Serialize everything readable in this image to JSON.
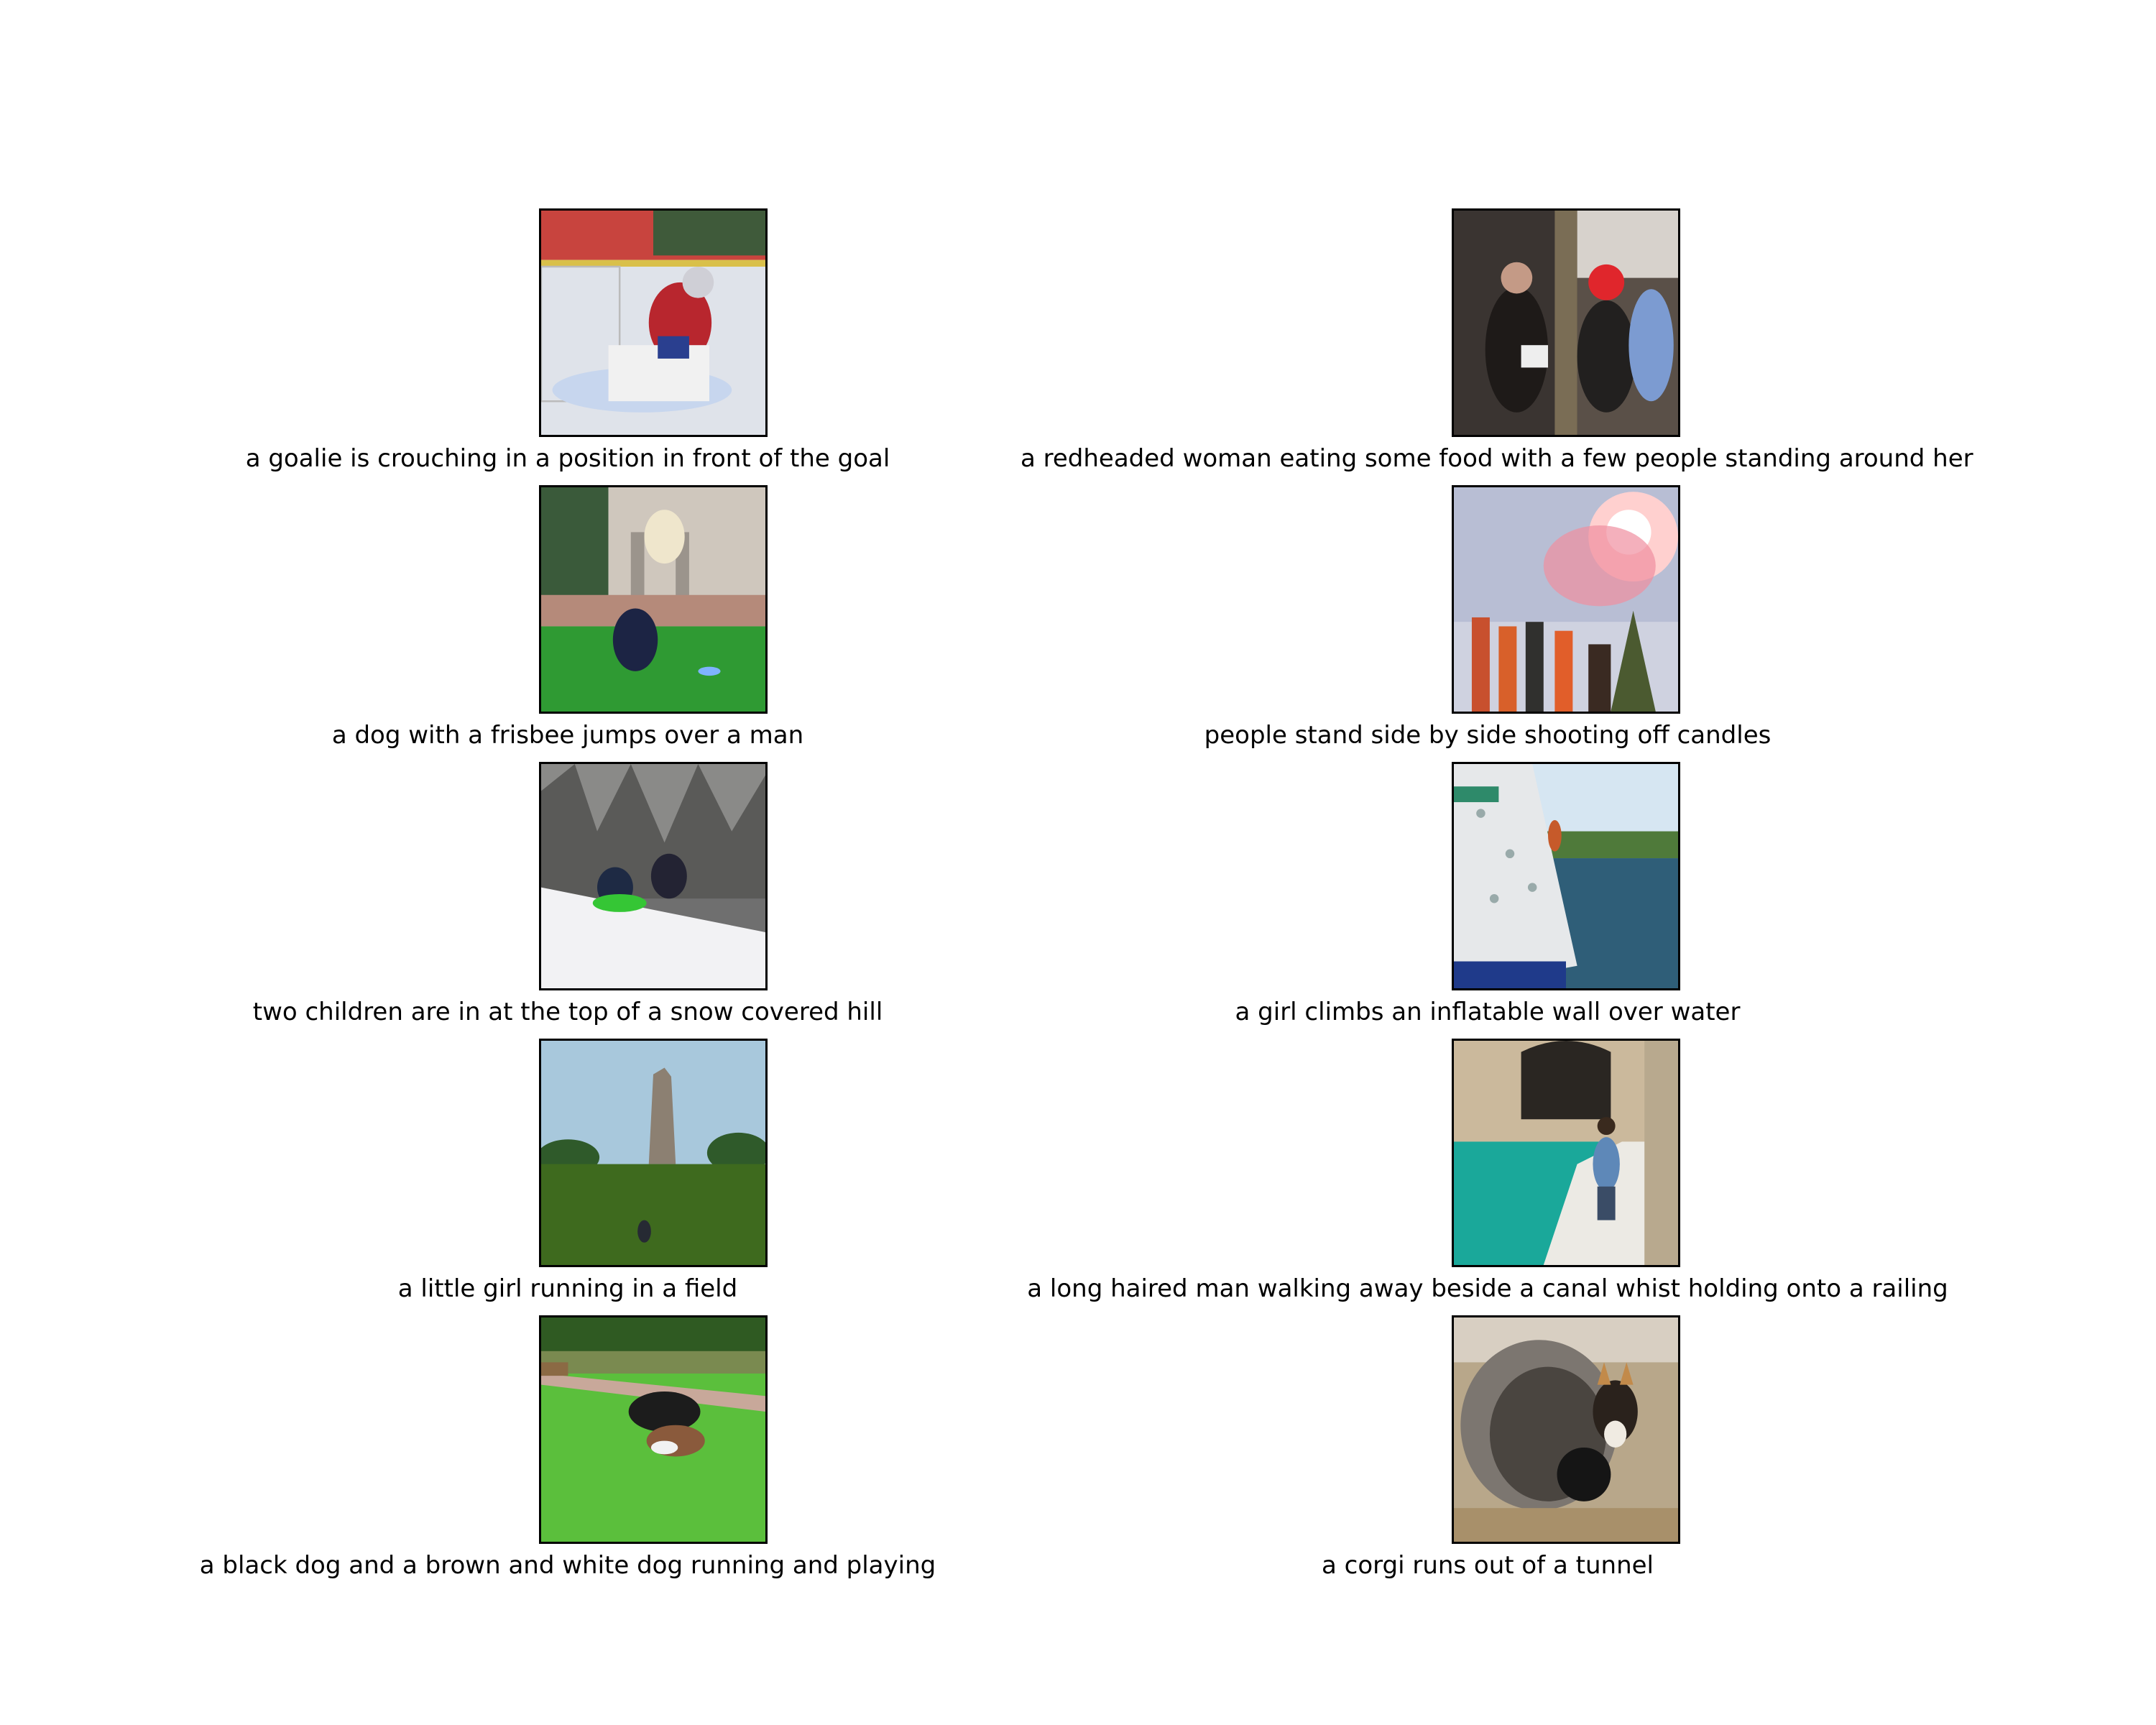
{
  "grid": [
    {
      "caption": "a goalie is crouching in a position in front of the goal",
      "scene": "hockey-goalie-photo"
    },
    {
      "caption": "a redheaded woman eating some food with a few people standing around her",
      "scene": "street-crowd-photo"
    },
    {
      "caption": "a dog with a frisbee jumps over a man",
      "scene": "dog-frisbee-photo"
    },
    {
      "caption": "people stand side by side shooting off candles",
      "scene": "fireworks-photo"
    },
    {
      "caption": "two children are in at the top of a snow covered hill",
      "scene": "snow-hill-photo"
    },
    {
      "caption": "a girl climbs an inflatable wall over water",
      "scene": "climbing-wall-photo"
    },
    {
      "caption": "a little girl running in a field",
      "scene": "field-tower-photo"
    },
    {
      "caption": "a long haired man walking away beside a canal whist holding onto a railing",
      "scene": "canal-photo"
    },
    {
      "caption": "a black dog and a brown and white dog running and playing",
      "scene": "dogs-grass-photo"
    },
    {
      "caption": "a corgi runs out of a tunnel",
      "scene": "corgi-tunnel-photo"
    }
  ]
}
